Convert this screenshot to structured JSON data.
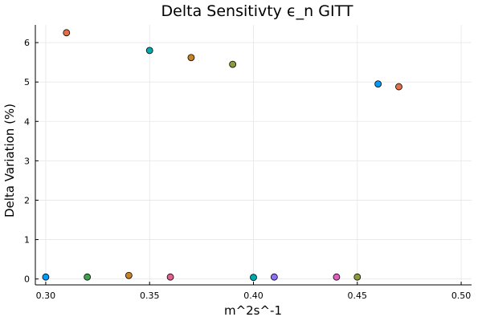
{
  "chart_data": {
    "type": "scatter",
    "title": "Delta Sensitivty ϵ_n GITT",
    "xlabel": "m^2s^-1",
    "ylabel": "Delta Variation (%)",
    "xlim": [
      0.295,
      0.505
    ],
    "ylim": [
      -0.15,
      6.45
    ],
    "xticks": [
      0.3,
      0.35,
      0.4,
      0.45,
      0.5
    ],
    "xtick_labels": [
      "0.30",
      "0.35",
      "0.40",
      "0.45",
      "0.50"
    ],
    "yticks": [
      0,
      1,
      2,
      3,
      4,
      5,
      6
    ],
    "ytick_labels": [
      "0",
      "1",
      "2",
      "3",
      "4",
      "5",
      "6"
    ],
    "grid": true,
    "legend": "none",
    "points": [
      {
        "x": 0.3,
        "y": 0.05,
        "color": "#009af9"
      },
      {
        "x": 0.31,
        "y": 6.25,
        "color": "#e26f46"
      },
      {
        "x": 0.32,
        "y": 0.05,
        "color": "#3da44d"
      },
      {
        "x": 0.34,
        "y": 0.09,
        "color": "#c68225"
      },
      {
        "x": 0.35,
        "y": 5.8,
        "color": "#00a9ad"
      },
      {
        "x": 0.36,
        "y": 0.05,
        "color": "#e05f90"
      },
      {
        "x": 0.37,
        "y": 5.62,
        "color": "#c68225"
      },
      {
        "x": 0.39,
        "y": 5.45,
        "color": "#8f9a3a"
      },
      {
        "x": 0.4,
        "y": 0.04,
        "color": "#00a9ad"
      },
      {
        "x": 0.41,
        "y": 0.05,
        "color": "#8e71f0"
      },
      {
        "x": 0.44,
        "y": 0.05,
        "color": "#e05fc0"
      },
      {
        "x": 0.45,
        "y": 0.05,
        "color": "#8f9a3a"
      },
      {
        "x": 0.46,
        "y": 4.95,
        "color": "#009af9"
      },
      {
        "x": 0.47,
        "y": 4.88,
        "color": "#e26f46"
      }
    ]
  }
}
